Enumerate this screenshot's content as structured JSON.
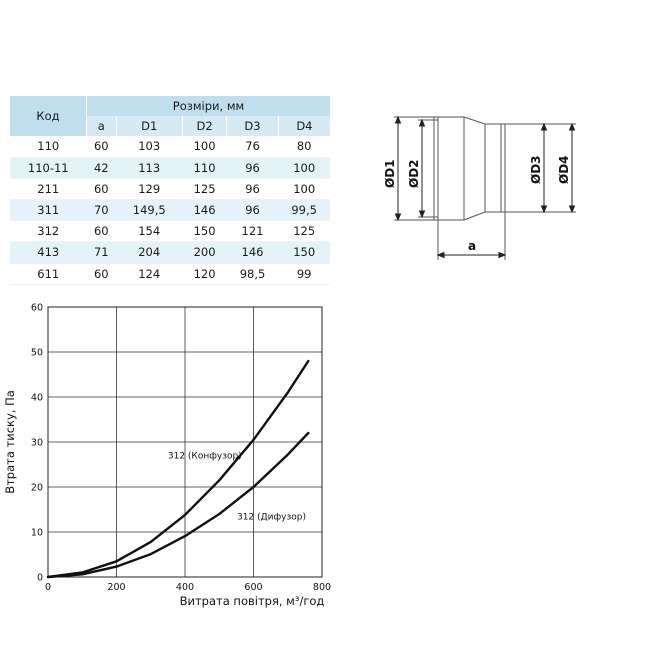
{
  "table": {
    "code_header": "Код",
    "group_header": "Розміри, мм",
    "columns": [
      "a",
      "D1",
      "D2",
      "D3",
      "D4"
    ],
    "rows": [
      [
        "110",
        "60",
        "103",
        "100",
        "76",
        "80"
      ],
      [
        "110-11",
        "42",
        "113",
        "110",
        "96",
        "100"
      ],
      [
        "211",
        "60",
        "129",
        "125",
        "96",
        "100"
      ],
      [
        "311",
        "70",
        "149,5",
        "146",
        "96",
        "99,5"
      ],
      [
        "312",
        "60",
        "154",
        "150",
        "121",
        "125"
      ],
      [
        "413",
        "71",
        "204",
        "200",
        "146",
        "150"
      ],
      [
        "611",
        "60",
        "124",
        "120",
        "98,5",
        "99"
      ]
    ]
  },
  "drawing": {
    "labels": [
      "ØD1",
      "ØD2",
      "ØD3",
      "ØD4",
      "a"
    ]
  },
  "chart_data": {
    "type": "line",
    "xlabel": "Витрата повітря, м³/год",
    "ylabel": "Втрата тиску, Па",
    "xlim": [
      0,
      800
    ],
    "ylim": [
      0,
      60
    ],
    "xticks": [
      0,
      200,
      400,
      600,
      800
    ],
    "yticks": [
      0,
      10,
      20,
      30,
      40,
      50,
      60
    ],
    "grid": true,
    "series": [
      {
        "name": "312 (Конфузор)",
        "x": [
          0,
          100,
          200,
          300,
          400,
          500,
          600,
          700,
          760
        ],
        "y": [
          0,
          1.0,
          3.5,
          7.8,
          13.8,
          21.5,
          30.5,
          41.0,
          48.0
        ]
      },
      {
        "name": "312 (Дифузор)",
        "x": [
          0,
          100,
          200,
          300,
          400,
          500,
          600,
          700,
          760
        ],
        "y": [
          0,
          0.6,
          2.3,
          5.1,
          9.1,
          14.0,
          20.0,
          27.2,
          32.0
        ]
      }
    ]
  }
}
